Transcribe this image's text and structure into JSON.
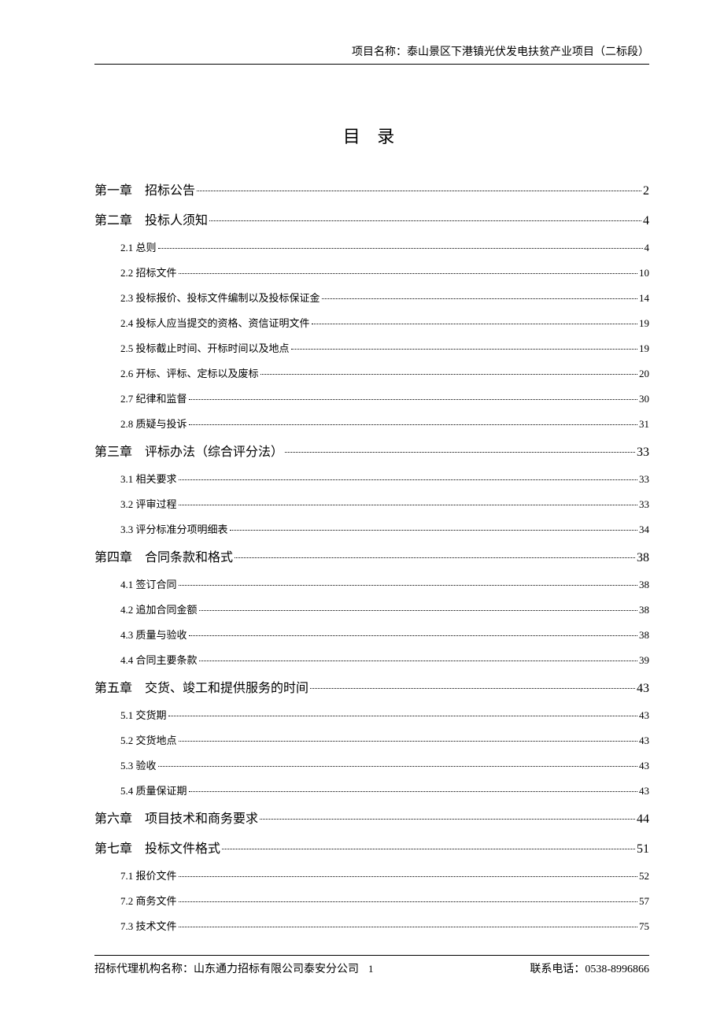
{
  "header": {
    "project_label": "项目名称：泰山景区下港镇光伏发电扶贫产业项目（二标段）"
  },
  "title": "目 录",
  "toc": [
    {
      "type": "chapter",
      "label": "第一章　招标公告",
      "page": "2"
    },
    {
      "type": "chapter",
      "label": "第二章　投标人须知",
      "page": "4"
    },
    {
      "type": "section",
      "label": "2.1 总则",
      "page": "4"
    },
    {
      "type": "section",
      "label": "2.2 招标文件",
      "page": "10"
    },
    {
      "type": "section",
      "label": "2.3 投标报价、投标文件编制以及投标保证金",
      "page": "14"
    },
    {
      "type": "section",
      "label": "2.4 投标人应当提交的资格、资信证明文件",
      "page": "19"
    },
    {
      "type": "section",
      "label": "2.5 投标截止时间、开标时间以及地点",
      "page": "19"
    },
    {
      "type": "section",
      "label": "2.6 开标、评标、定标以及废标",
      "page": "20"
    },
    {
      "type": "section",
      "label": "2.7 纪律和监督",
      "page": "30"
    },
    {
      "type": "section",
      "label": "2.8 质疑与投诉",
      "page": "31"
    },
    {
      "type": "chapter",
      "label": "第三章　评标办法（综合评分法）",
      "page": "33"
    },
    {
      "type": "section",
      "label": "3.1 相关要求",
      "page": "33"
    },
    {
      "type": "section",
      "label": "3.2 评审过程",
      "page": "33"
    },
    {
      "type": "section",
      "label": "3.3 评分标准分项明细表",
      "page": "34"
    },
    {
      "type": "chapter",
      "label": "第四章　合同条款和格式",
      "page": "38"
    },
    {
      "type": "section",
      "label": "4.1 签订合同",
      "page": "38"
    },
    {
      "type": "section",
      "label": "4.2 追加合同金额",
      "page": "38"
    },
    {
      "type": "section",
      "label": "4.3 质量与验收",
      "page": "38"
    },
    {
      "type": "section",
      "label": "4.4 合同主要条款",
      "page": "39"
    },
    {
      "type": "chapter",
      "label": "第五章　交货、竣工和提供服务的时间",
      "page": "43"
    },
    {
      "type": "section",
      "label": "5.1 交货期",
      "page": "43"
    },
    {
      "type": "section",
      "label": "5.2 交货地点",
      "page": "43"
    },
    {
      "type": "section",
      "label": "5.3 验收",
      "page": "43"
    },
    {
      "type": "section",
      "label": "5.4 质量保证期",
      "page": "43"
    },
    {
      "type": "chapter",
      "label": "第六章　项目技术和商务要求",
      "page": "44"
    },
    {
      "type": "chapter",
      "label": "第七章　投标文件格式",
      "page": "51"
    },
    {
      "type": "section",
      "label": "7.1 报价文件",
      "page": "52"
    },
    {
      "type": "section",
      "label": "7.2 商务文件",
      "page": "57"
    },
    {
      "type": "section",
      "label": "7.3 技术文件",
      "page": "75"
    }
  ],
  "footer": {
    "agency_label": "招标代理机构名称：山东通力招标有限公司泰安分公司",
    "page_number": "1",
    "contact_label": "联系电话：0538-8996866"
  }
}
